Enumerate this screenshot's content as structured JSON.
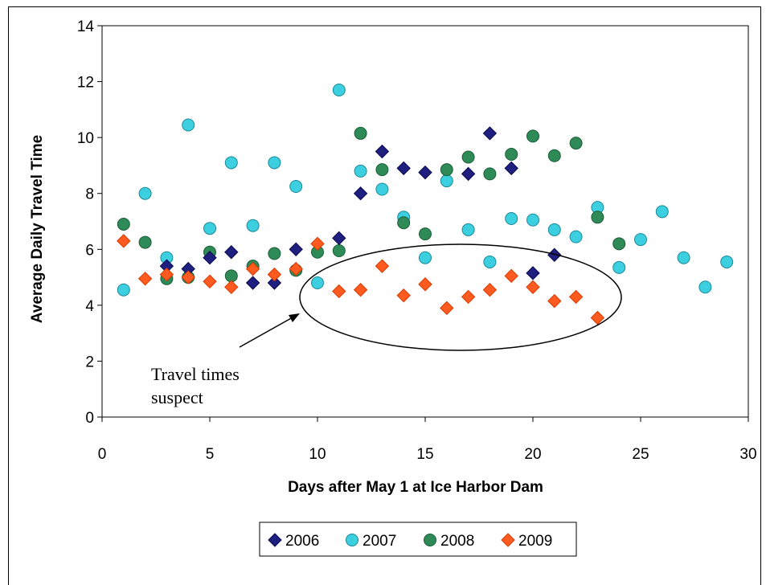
{
  "chart_data": {
    "type": "scatter",
    "title": "",
    "xlabel": "Days after May 1 at Ice Harbor Dam",
    "ylabel": "Average Daily Travel Time",
    "xlim": [
      0,
      30
    ],
    "ylim": [
      0,
      14
    ],
    "x_ticks": [
      "0",
      "5",
      "10",
      "15",
      "20",
      "25",
      "30"
    ],
    "y_ticks": [
      "0",
      "2",
      "4",
      "6",
      "8",
      "10",
      "12",
      "14"
    ],
    "grid": false,
    "legend_position": "bottom",
    "annotation": {
      "lines": [
        "Travel times",
        "suspect"
      ],
      "highlight": "ellipse around 2009 values for days 10-23"
    },
    "series": [
      {
        "name": "2006",
        "marker": "diamond",
        "color": "#1f1f80",
        "points": [
          [
            3,
            5.4
          ],
          [
            4,
            5.3
          ],
          [
            5,
            5.7
          ],
          [
            6,
            5.9
          ],
          [
            7,
            4.8
          ],
          [
            8,
            4.8
          ],
          [
            9,
            6.0
          ],
          [
            11,
            6.4
          ],
          [
            12,
            8.0
          ],
          [
            13,
            9.5
          ],
          [
            14,
            8.9
          ],
          [
            15,
            8.75
          ],
          [
            17,
            8.7
          ],
          [
            18,
            10.15
          ],
          [
            19,
            8.9
          ],
          [
            20,
            5.15
          ],
          [
            21,
            5.8
          ]
        ]
      },
      {
        "name": "2007",
        "marker": "circle",
        "color": "#3ccfe0",
        "points": [
          [
            1,
            4.55
          ],
          [
            2,
            8.0
          ],
          [
            3,
            5.7
          ],
          [
            4,
            10.45
          ],
          [
            5,
            6.75
          ],
          [
            6,
            9.1
          ],
          [
            7,
            6.85
          ],
          [
            8,
            9.1
          ],
          [
            9,
            8.25
          ],
          [
            10,
            4.8
          ],
          [
            11,
            11.7
          ],
          [
            12,
            8.8
          ],
          [
            13,
            8.15
          ],
          [
            14,
            7.15
          ],
          [
            15,
            5.7
          ],
          [
            16,
            8.45
          ],
          [
            17,
            6.7
          ],
          [
            18,
            5.55
          ],
          [
            19,
            7.1
          ],
          [
            20,
            7.05
          ],
          [
            21,
            6.7
          ],
          [
            22,
            6.45
          ],
          [
            23,
            7.5
          ],
          [
            24,
            5.35
          ],
          [
            25,
            6.35
          ],
          [
            26,
            7.35
          ],
          [
            27,
            5.7
          ],
          [
            28,
            4.65
          ],
          [
            29,
            5.55
          ]
        ]
      },
      {
        "name": "2008",
        "marker": "circle",
        "color": "#2e8b57",
        "points": [
          [
            1,
            6.9
          ],
          [
            2,
            6.25
          ],
          [
            3,
            4.95
          ],
          [
            4,
            5.0
          ],
          [
            5,
            5.9
          ],
          [
            6,
            5.05
          ],
          [
            7,
            5.4
          ],
          [
            8,
            5.85
          ],
          [
            9,
            5.25
          ],
          [
            10,
            5.9
          ],
          [
            11,
            5.95
          ],
          [
            12,
            10.15
          ],
          [
            13,
            8.85
          ],
          [
            14,
            6.95
          ],
          [
            15,
            6.55
          ],
          [
            16,
            8.85
          ],
          [
            17,
            9.3
          ],
          [
            18,
            8.7
          ],
          [
            19,
            9.4
          ],
          [
            20,
            10.05
          ],
          [
            21,
            9.35
          ],
          [
            22,
            9.8
          ],
          [
            23,
            7.15
          ],
          [
            24,
            6.2
          ]
        ]
      },
      {
        "name": "2009",
        "marker": "diamond",
        "color": "#ff5a1f",
        "points": [
          [
            1,
            6.3
          ],
          [
            2,
            4.95
          ],
          [
            3,
            5.1
          ],
          [
            4,
            5.0
          ],
          [
            5,
            4.85
          ],
          [
            6,
            4.65
          ],
          [
            7,
            5.3
          ],
          [
            8,
            5.1
          ],
          [
            9,
            5.3
          ],
          [
            10,
            6.2
          ],
          [
            11,
            4.5
          ],
          [
            12,
            4.55
          ],
          [
            13,
            5.4
          ],
          [
            14,
            4.35
          ],
          [
            15,
            4.75
          ],
          [
            16,
            3.9
          ],
          [
            17,
            4.3
          ],
          [
            18,
            4.55
          ],
          [
            19,
            5.05
          ],
          [
            20,
            4.65
          ],
          [
            21,
            4.15
          ],
          [
            22,
            4.3
          ],
          [
            23,
            3.55
          ]
        ]
      }
    ]
  }
}
